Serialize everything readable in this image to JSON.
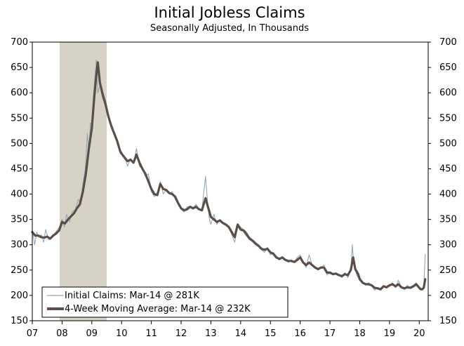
{
  "chart_data": {
    "type": "line",
    "title": "Initial Jobless Claims",
    "subtitle": "Seasonally Adjusted, In Thousands",
    "xlabel": "",
    "ylabel": "",
    "xlim": [
      2007.0,
      2020.3
    ],
    "ylim": [
      150,
      700
    ],
    "x_ticks": [
      {
        "label": "07",
        "value": 2007
      },
      {
        "label": "08",
        "value": 2008
      },
      {
        "label": "09",
        "value": 2009
      },
      {
        "label": "10",
        "value": 2010
      },
      {
        "label": "11",
        "value": 2011
      },
      {
        "label": "12",
        "value": 2012
      },
      {
        "label": "13",
        "value": 2013
      },
      {
        "label": "14",
        "value": 2014
      },
      {
        "label": "15",
        "value": 2015
      },
      {
        "label": "16",
        "value": 2016
      },
      {
        "label": "17",
        "value": 2017
      },
      {
        "label": "18",
        "value": 2018
      },
      {
        "label": "19",
        "value": 2019
      },
      {
        "label": "20",
        "value": 2020
      }
    ],
    "y_ticks": [
      150,
      200,
      250,
      300,
      350,
      400,
      450,
      500,
      550,
      600,
      650,
      700
    ],
    "recession": {
      "start": 2007.92,
      "end": 2009.5,
      "color": "#d6d2c5"
    },
    "legend_position": "bottom-left",
    "series": [
      {
        "name": "Initial Claims: Mar-14 @ 281K",
        "color": "#8fa7b8",
        "style": "thin",
        "points": [
          [
            2007.0,
            330
          ],
          [
            2007.08,
            300
          ],
          [
            2007.15,
            325
          ],
          [
            2007.22,
            315
          ],
          [
            2007.3,
            320
          ],
          [
            2007.38,
            305
          ],
          [
            2007.45,
            330
          ],
          [
            2007.55,
            310
          ],
          [
            2007.65,
            315
          ],
          [
            2007.75,
            322
          ],
          [
            2007.85,
            330
          ],
          [
            2007.92,
            335
          ],
          [
            2008.0,
            350
          ],
          [
            2008.08,
            335
          ],
          [
            2008.15,
            360
          ],
          [
            2008.25,
            345
          ],
          [
            2008.35,
            365
          ],
          [
            2008.45,
            370
          ],
          [
            2008.55,
            390
          ],
          [
            2008.62,
            380
          ],
          [
            2008.7,
            420
          ],
          [
            2008.78,
            450
          ],
          [
            2008.85,
            520
          ],
          [
            2008.9,
            480
          ],
          [
            2008.95,
            540
          ],
          [
            2009.0,
            540
          ],
          [
            2009.05,
            590
          ],
          [
            2009.1,
            630
          ],
          [
            2009.15,
            665
          ],
          [
            2009.2,
            600
          ],
          [
            2009.28,
            615
          ],
          [
            2009.35,
            590
          ],
          [
            2009.45,
            575
          ],
          [
            2009.55,
            550
          ],
          [
            2009.65,
            540
          ],
          [
            2009.75,
            520
          ],
          [
            2009.85,
            505
          ],
          [
            2009.95,
            480
          ],
          [
            2010.0,
            480
          ],
          [
            2010.1,
            475
          ],
          [
            2010.2,
            455
          ],
          [
            2010.3,
            470
          ],
          [
            2010.4,
            460
          ],
          [
            2010.5,
            490
          ],
          [
            2010.6,
            455
          ],
          [
            2010.7,
            450
          ],
          [
            2010.8,
            435
          ],
          [
            2010.9,
            440
          ],
          [
            2011.0,
            405
          ],
          [
            2011.1,
            395
          ],
          [
            2011.2,
            400
          ],
          [
            2011.3,
            425
          ],
          [
            2011.4,
            400
          ],
          [
            2011.5,
            410
          ],
          [
            2011.6,
            400
          ],
          [
            2011.7,
            405
          ],
          [
            2011.8,
            390
          ],
          [
            2011.9,
            380
          ],
          [
            2012.0,
            370
          ],
          [
            2012.1,
            365
          ],
          [
            2012.2,
            375
          ],
          [
            2012.3,
            375
          ],
          [
            2012.4,
            370
          ],
          [
            2012.5,
            380
          ],
          [
            2012.6,
            370
          ],
          [
            2012.7,
            370
          ],
          [
            2012.82,
            435
          ],
          [
            2012.88,
            390
          ],
          [
            2012.95,
            350
          ],
          [
            2013.0,
            340
          ],
          [
            2013.1,
            360
          ],
          [
            2013.2,
            340
          ],
          [
            2013.3,
            350
          ],
          [
            2013.4,
            345
          ],
          [
            2013.5,
            340
          ],
          [
            2013.6,
            335
          ],
          [
            2013.7,
            320
          ],
          [
            2013.8,
            305
          ],
          [
            2013.9,
            340
          ],
          [
            2014.0,
            335
          ],
          [
            2014.1,
            330
          ],
          [
            2014.2,
            325
          ],
          [
            2014.3,
            315
          ],
          [
            2014.4,
            310
          ],
          [
            2014.5,
            305
          ],
          [
            2014.6,
            300
          ],
          [
            2014.7,
            290
          ],
          [
            2014.8,
            285
          ],
          [
            2014.9,
            295
          ],
          [
            2015.0,
            280
          ],
          [
            2015.1,
            285
          ],
          [
            2015.2,
            275
          ],
          [
            2015.3,
            270
          ],
          [
            2015.4,
            275
          ],
          [
            2015.5,
            270
          ],
          [
            2015.6,
            265
          ],
          [
            2015.7,
            270
          ],
          [
            2015.8,
            265
          ],
          [
            2015.9,
            275
          ],
          [
            2016.0,
            280
          ],
          [
            2016.1,
            265
          ],
          [
            2016.2,
            255
          ],
          [
            2016.3,
            280
          ],
          [
            2016.4,
            260
          ],
          [
            2016.5,
            255
          ],
          [
            2016.6,
            250
          ],
          [
            2016.7,
            255
          ],
          [
            2016.8,
            260
          ],
          [
            2016.9,
            240
          ],
          [
            2017.0,
            245
          ],
          [
            2017.1,
            240
          ],
          [
            2017.2,
            245
          ],
          [
            2017.3,
            240
          ],
          [
            2017.4,
            235
          ],
          [
            2017.5,
            245
          ],
          [
            2017.6,
            235
          ],
          [
            2017.7,
            250
          ],
          [
            2017.75,
            300
          ],
          [
            2017.8,
            260
          ],
          [
            2017.9,
            240
          ],
          [
            2018.0,
            230
          ],
          [
            2018.1,
            225
          ],
          [
            2018.2,
            220
          ],
          [
            2018.3,
            225
          ],
          [
            2018.4,
            220
          ],
          [
            2018.5,
            210
          ],
          [
            2018.6,
            215
          ],
          [
            2018.7,
            212
          ],
          [
            2018.8,
            220
          ],
          [
            2018.9,
            215
          ],
          [
            2019.0,
            220
          ],
          [
            2019.1,
            225
          ],
          [
            2019.2,
            215
          ],
          [
            2019.3,
            230
          ],
          [
            2019.4,
            215
          ],
          [
            2019.5,
            212
          ],
          [
            2019.6,
            220
          ],
          [
            2019.7,
            215
          ],
          [
            2019.8,
            220
          ],
          [
            2019.9,
            225
          ],
          [
            2020.0,
            215
          ],
          [
            2020.05,
            212
          ],
          [
            2020.1,
            210
          ],
          [
            2020.15,
            215
          ],
          [
            2020.2,
            281
          ]
        ]
      },
      {
        "name": "4-Week Moving Average: Mar-14 @ 232K",
        "color": "#5a4f48",
        "style": "thick",
        "points": [
          [
            2007.0,
            325
          ],
          [
            2007.1,
            318
          ],
          [
            2007.2,
            318
          ],
          [
            2007.3,
            315
          ],
          [
            2007.4,
            314
          ],
          [
            2007.5,
            316
          ],
          [
            2007.6,
            312
          ],
          [
            2007.7,
            318
          ],
          [
            2007.8,
            322
          ],
          [
            2007.9,
            328
          ],
          [
            2008.0,
            345
          ],
          [
            2008.1,
            342
          ],
          [
            2008.2,
            350
          ],
          [
            2008.3,
            356
          ],
          [
            2008.4,
            362
          ],
          [
            2008.5,
            372
          ],
          [
            2008.6,
            380
          ],
          [
            2008.7,
            405
          ],
          [
            2008.8,
            440
          ],
          [
            2008.9,
            490
          ],
          [
            2009.0,
            530
          ],
          [
            2009.08,
            590
          ],
          [
            2009.15,
            635
          ],
          [
            2009.2,
            660
          ],
          [
            2009.27,
            620
          ],
          [
            2009.35,
            600
          ],
          [
            2009.45,
            580
          ],
          [
            2009.55,
            555
          ],
          [
            2009.65,
            535
          ],
          [
            2009.75,
            520
          ],
          [
            2009.85,
            505
          ],
          [
            2009.95,
            485
          ],
          [
            2010.0,
            480
          ],
          [
            2010.1,
            472
          ],
          [
            2010.2,
            465
          ],
          [
            2010.3,
            468
          ],
          [
            2010.4,
            462
          ],
          [
            2010.5,
            478
          ],
          [
            2010.6,
            462
          ],
          [
            2010.7,
            450
          ],
          [
            2010.8,
            440
          ],
          [
            2010.9,
            425
          ],
          [
            2011.0,
            410
          ],
          [
            2011.1,
            400
          ],
          [
            2011.2,
            398
          ],
          [
            2011.3,
            420
          ],
          [
            2011.4,
            410
          ],
          [
            2011.5,
            408
          ],
          [
            2011.6,
            402
          ],
          [
            2011.7,
            400
          ],
          [
            2011.8,
            395
          ],
          [
            2011.9,
            382
          ],
          [
            2012.0,
            372
          ],
          [
            2012.1,
            368
          ],
          [
            2012.2,
            370
          ],
          [
            2012.3,
            375
          ],
          [
            2012.4,
            372
          ],
          [
            2012.5,
            375
          ],
          [
            2012.6,
            370
          ],
          [
            2012.7,
            368
          ],
          [
            2012.82,
            392
          ],
          [
            2012.9,
            375
          ],
          [
            2013.0,
            355
          ],
          [
            2013.1,
            350
          ],
          [
            2013.2,
            345
          ],
          [
            2013.3,
            348
          ],
          [
            2013.4,
            343
          ],
          [
            2013.5,
            340
          ],
          [
            2013.6,
            335
          ],
          [
            2013.7,
            325
          ],
          [
            2013.8,
            315
          ],
          [
            2013.9,
            340
          ],
          [
            2014.0,
            330
          ],
          [
            2014.1,
            328
          ],
          [
            2014.2,
            320
          ],
          [
            2014.3,
            312
          ],
          [
            2014.4,
            308
          ],
          [
            2014.5,
            302
          ],
          [
            2014.6,
            298
          ],
          [
            2014.7,
            292
          ],
          [
            2014.8,
            290
          ],
          [
            2014.9,
            292
          ],
          [
            2015.0,
            285
          ],
          [
            2015.1,
            282
          ],
          [
            2015.2,
            275
          ],
          [
            2015.3,
            272
          ],
          [
            2015.4,
            275
          ],
          [
            2015.5,
            270
          ],
          [
            2015.6,
            268
          ],
          [
            2015.7,
            268
          ],
          [
            2015.8,
            266
          ],
          [
            2015.9,
            270
          ],
          [
            2016.0,
            275
          ],
          [
            2016.1,
            265
          ],
          [
            2016.2,
            260
          ],
          [
            2016.3,
            265
          ],
          [
            2016.4,
            260
          ],
          [
            2016.5,
            255
          ],
          [
            2016.6,
            252
          ],
          [
            2016.7,
            255
          ],
          [
            2016.8,
            255
          ],
          [
            2016.9,
            245
          ],
          [
            2017.0,
            245
          ],
          [
            2017.1,
            242
          ],
          [
            2017.2,
            243
          ],
          [
            2017.3,
            240
          ],
          [
            2017.4,
            238
          ],
          [
            2017.5,
            242
          ],
          [
            2017.6,
            240
          ],
          [
            2017.7,
            250
          ],
          [
            2017.78,
            275
          ],
          [
            2017.85,
            252
          ],
          [
            2017.95,
            242
          ],
          [
            2018.0,
            232
          ],
          [
            2018.1,
            225
          ],
          [
            2018.2,
            222
          ],
          [
            2018.3,
            222
          ],
          [
            2018.4,
            220
          ],
          [
            2018.5,
            215
          ],
          [
            2018.6,
            214
          ],
          [
            2018.7,
            212
          ],
          [
            2018.8,
            218
          ],
          [
            2018.9,
            216
          ],
          [
            2019.0,
            220
          ],
          [
            2019.1,
            222
          ],
          [
            2019.2,
            218
          ],
          [
            2019.3,
            222
          ],
          [
            2019.4,
            216
          ],
          [
            2019.5,
            214
          ],
          [
            2019.6,
            216
          ],
          [
            2019.7,
            215
          ],
          [
            2019.8,
            218
          ],
          [
            2019.9,
            222
          ],
          [
            2020.0,
            215
          ],
          [
            2020.05,
            212
          ],
          [
            2020.1,
            212
          ],
          [
            2020.15,
            215
          ],
          [
            2020.2,
            232
          ]
        ]
      }
    ]
  }
}
